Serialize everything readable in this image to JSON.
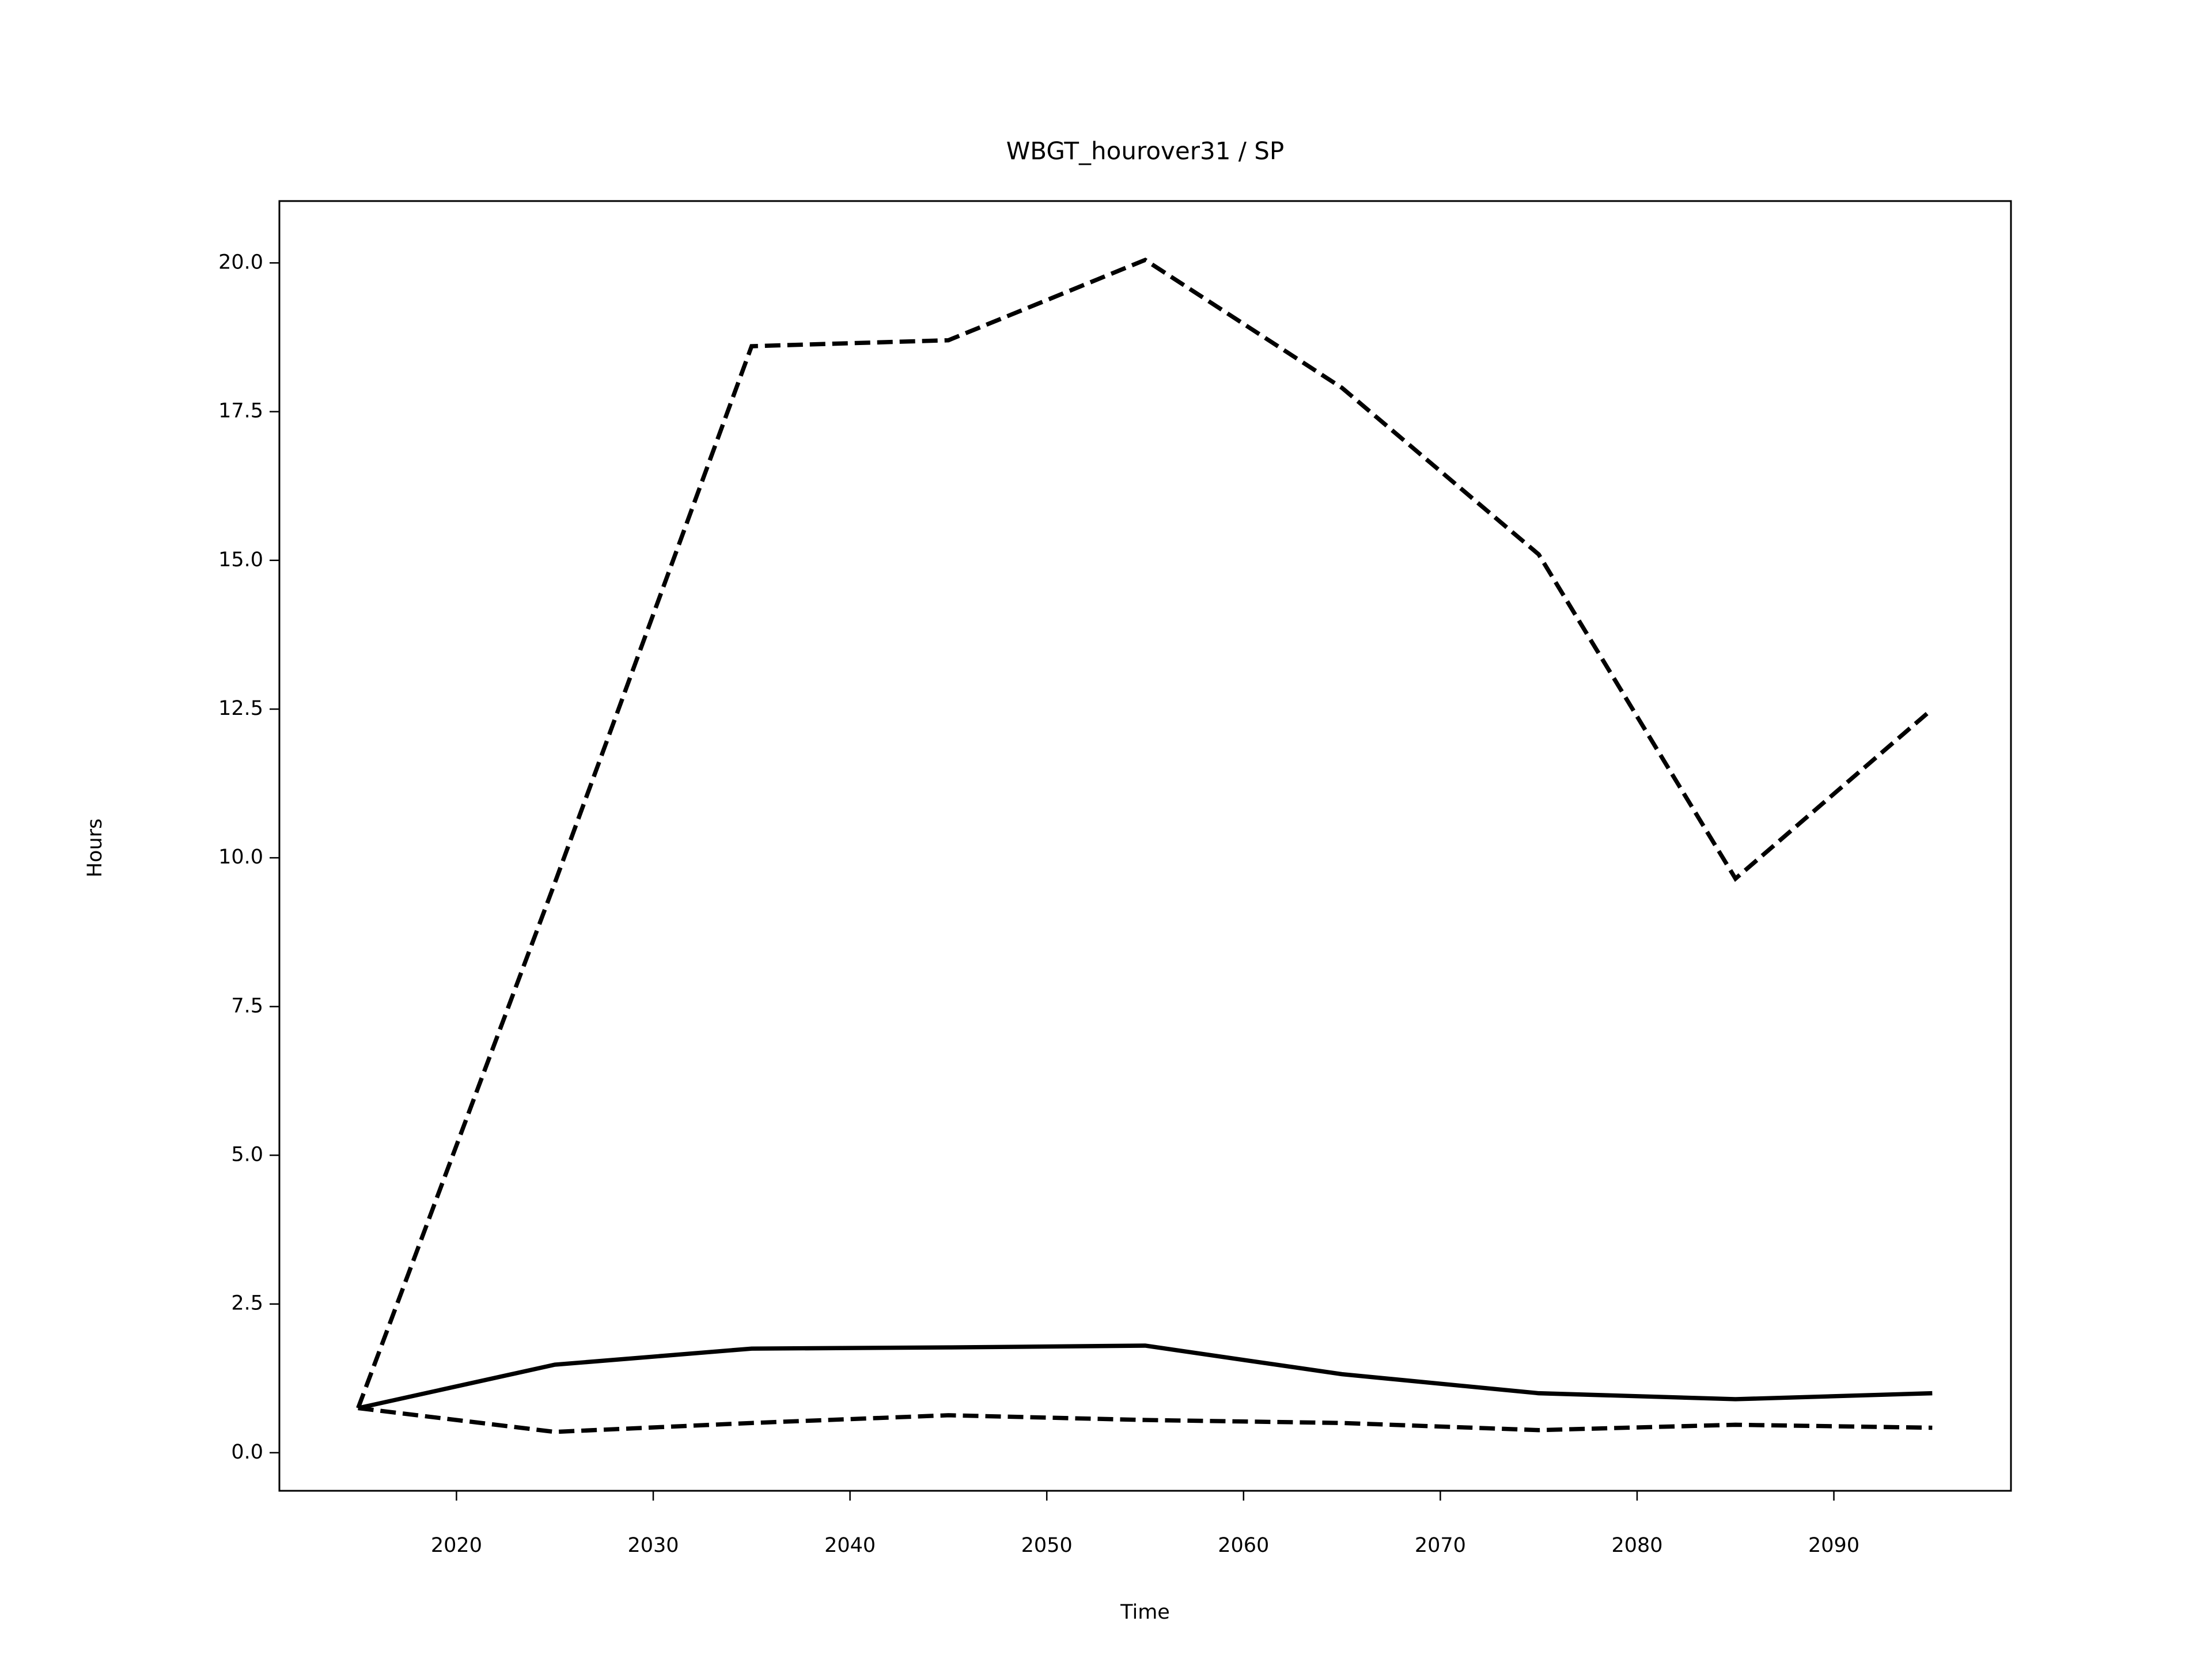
{
  "chart_data": {
    "type": "line",
    "title": "WBGT_hourover31 / SP",
    "xlabel": "Time",
    "ylabel": "Hours",
    "x": [
      2015,
      2025,
      2035,
      2045,
      2055,
      2065,
      2075,
      2085,
      2095
    ],
    "series": [
      {
        "color": "#000000",
        "linestyle": "solid",
        "values": [
          0.75,
          1.48,
          1.75,
          1.77,
          1.8,
          1.32,
          1.0,
          0.9,
          1.0
        ]
      },
      {
        "color": "#000000",
        "linestyle": "dashed",
        "values": [
          0.75,
          9.58,
          18.6,
          18.7,
          20.05,
          17.9,
          15.1,
          9.65,
          12.5
        ]
      },
      {
        "color": "#000000",
        "linestyle": "dashed",
        "values": [
          0.75,
          0.35,
          0.5,
          0.63,
          0.55,
          0.5,
          0.38,
          0.47,
          0.42
        ]
      }
    ],
    "xlim": [
      2011,
      2099
    ],
    "xticks": [
      2020,
      2030,
      2040,
      2050,
      2060,
      2070,
      2080,
      2090
    ],
    "ylim": [
      -0.64,
      21.04
    ],
    "yticks": [
      {
        "value": 0,
        "label": "0.0"
      },
      2.5,
      {
        "value": 5,
        "label": "5.0"
      },
      7.5,
      {
        "value": 10,
        "label": "10.0"
      },
      12.5,
      {
        "value": 15,
        "label": "15.0"
      },
      17.5,
      {
        "value": 20,
        "label": "20.0"
      }
    ],
    "grid": false
  }
}
